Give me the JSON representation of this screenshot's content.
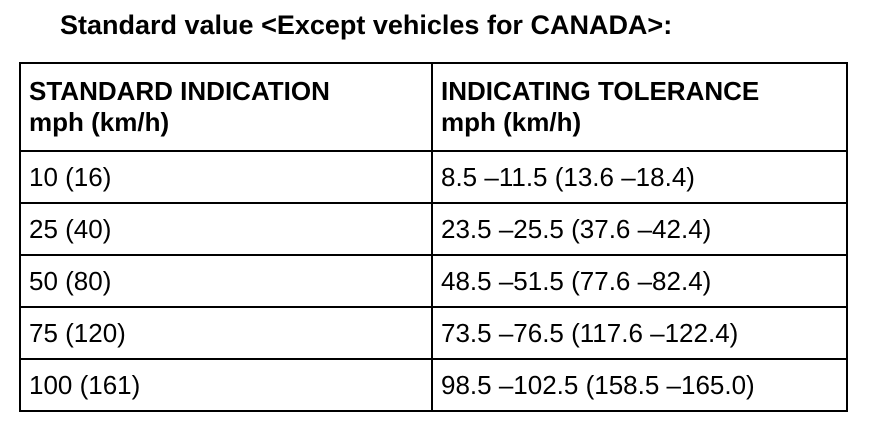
{
  "title": "Standard value <Except vehicles for CANADA>:",
  "table": {
    "headers": [
      {
        "line1": "STANDARD INDICATION",
        "line2": "mph (km/h)"
      },
      {
        "line1": "INDICATING TOLERANCE",
        "line2": "mph (km/h)"
      }
    ],
    "rows": [
      {
        "standard": "10 (16)",
        "tolerance": "8.5 –11.5 (13.6 –18.4)"
      },
      {
        "standard": "25 (40)",
        "tolerance": "23.5 –25.5 (37.6 –42.4)"
      },
      {
        "standard": "50 (80)",
        "tolerance": "48.5 –51.5 (77.6 –82.4)"
      },
      {
        "standard": "75 (120)",
        "tolerance": "73.5 –76.5 (117.6 –122.4)"
      },
      {
        "standard": "100 (161)",
        "tolerance": "98.5 –102.5 (158.5 –165.0)"
      }
    ]
  }
}
